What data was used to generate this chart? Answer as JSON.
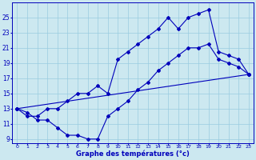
{
  "xlabel": "Graphe des températures (°c)",
  "bg_color": "#cce8f0",
  "line_color": "#0000bb",
  "grid_color": "#99cce0",
  "line1_x": [
    0,
    1,
    2,
    3,
    4,
    5,
    6,
    7,
    8,
    9,
    10,
    11,
    12,
    13,
    14,
    15,
    16,
    17,
    18,
    19,
    20,
    21,
    22,
    23
  ],
  "line1_y": [
    13,
    12,
    12,
    13,
    13,
    14,
    15,
    15,
    16,
    15,
    19.5,
    20.5,
    21.5,
    22.5,
    23.5,
    25,
    23.5,
    25,
    25.5,
    26,
    20.5,
    20,
    19.5,
    17.5
  ],
  "line2_x": [
    0,
    1,
    2,
    3,
    4,
    5,
    6,
    7,
    8,
    9,
    10,
    11,
    12,
    13,
    14,
    15,
    16,
    17,
    18,
    19,
    20,
    21,
    22,
    23
  ],
  "line2_y": [
    13,
    12.5,
    11.5,
    11.5,
    10.5,
    9.5,
    9.5,
    9,
    9,
    12,
    13,
    14,
    15.5,
    16.5,
    18,
    19,
    20,
    21,
    21,
    21.5,
    19.5,
    19,
    18.5,
    17.5
  ],
  "line3_x": [
    0,
    23
  ],
  "line3_y": [
    13,
    17.5
  ],
  "xlim": [
    -0.5,
    23.5
  ],
  "ylim": [
    8.5,
    27
  ],
  "yticks": [
    9,
    11,
    13,
    15,
    17,
    19,
    21,
    23,
    25
  ],
  "xticks": [
    0,
    1,
    2,
    3,
    4,
    5,
    6,
    7,
    8,
    9,
    10,
    11,
    12,
    13,
    14,
    15,
    16,
    17,
    18,
    19,
    20,
    21,
    22,
    23
  ]
}
